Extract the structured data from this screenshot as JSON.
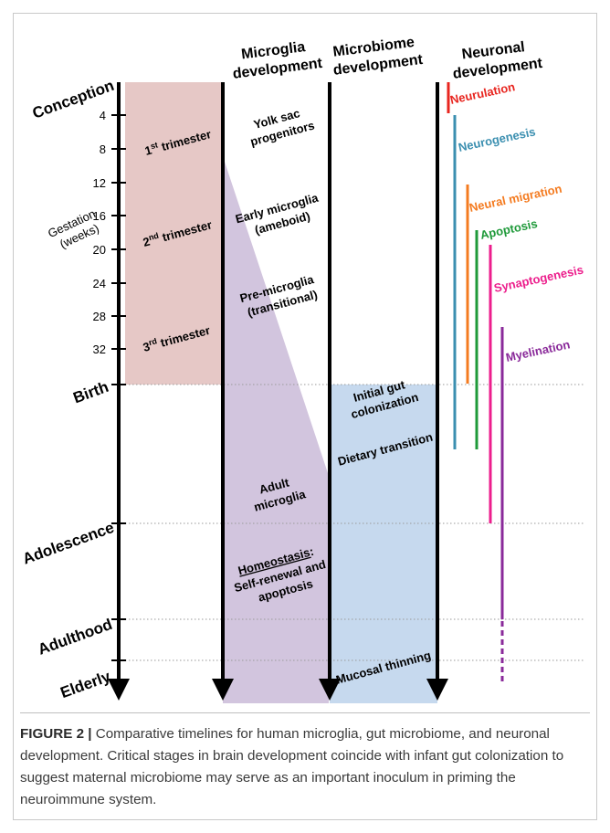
{
  "headers": {
    "microglia": [
      "Microglia",
      "development"
    ],
    "microbiome": [
      "Microbiome",
      "development"
    ],
    "neuronal": [
      "Neuronal",
      "development"
    ]
  },
  "life_stages": [
    "Conception",
    "Birth",
    "Adolescence",
    "Adulthood",
    "Elderly"
  ],
  "gestation_label": [
    "Gestation",
    "(weeks)"
  ],
  "week_ticks": [
    "4",
    "8",
    "12",
    "16",
    "20",
    "24",
    "28",
    "32"
  ],
  "trimesters": [
    {
      "num": "1",
      "sup": "st",
      "text": " trimester"
    },
    {
      "num": "2",
      "sup": "nd",
      "text": " trimester"
    },
    {
      "num": "3",
      "sup": "rd",
      "text": " trimester"
    }
  ],
  "microglia_stages": {
    "yolk": [
      "Yolk sac",
      "progenitors"
    ],
    "early": [
      "Early microglia",
      "(ameboid)"
    ],
    "pre": [
      "Pre-microglia",
      "(transitional)"
    ],
    "adult": [
      "Adult",
      "microglia"
    ],
    "homeostasis_title": "Homeostasis",
    "homeostasis_rest": [
      "Self-renewal and",
      "apoptosis"
    ]
  },
  "microbiome_stages": {
    "initial": [
      "Initial gut",
      "colonization"
    ],
    "dietary": "Dietary transition",
    "mucosal": "Mucosal thinning"
  },
  "neuronal_processes": [
    {
      "name": "Neurulation",
      "color": "#e8251f"
    },
    {
      "name": "Neurogenesis",
      "color": "#3b8fb0"
    },
    {
      "name": "Neural migration",
      "color": "#f47b20"
    },
    {
      "name": "Apoptosis",
      "color": "#1f9a3a"
    },
    {
      "name": "Synaptogenesis",
      "color": "#ec1e8c"
    },
    {
      "name": "Myelination",
      "color": "#8a2a9a"
    }
  ],
  "colors": {
    "gestation_fill": "#e6c8c6",
    "microglia_fill": "#d2c5de",
    "microbiome_fill": "#c6d9ee"
  },
  "caption": {
    "label": "FIGURE 2 |",
    "text": " Comparative timelines for human microglia, gut microbiome, and neuronal development. Critical stages in brain development coincide with infant gut colonization to suggest maternal microbiome may serve as an important inoculum in priming the neuroimmune system."
  }
}
